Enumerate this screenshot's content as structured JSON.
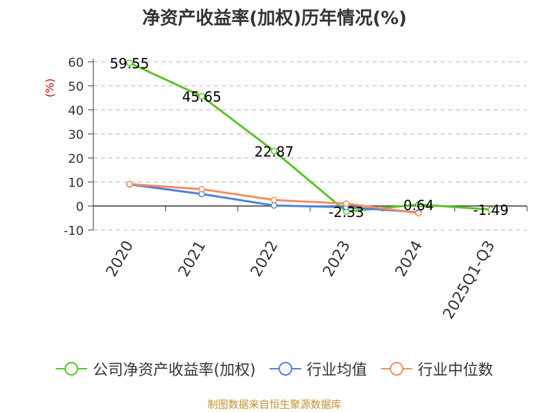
{
  "chart_data": {
    "type": "line",
    "title": "净资产收益率(加权)历年情况(%)",
    "xlabel": "",
    "ylabel": "(%)",
    "categories": [
      "2020",
      "2021",
      "2022",
      "2023",
      "2024",
      "2025Q1-Q3"
    ],
    "ylim": [
      -10,
      60
    ],
    "yticks": [
      -10,
      0,
      10,
      20,
      30,
      40,
      50,
      60
    ],
    "grid": true,
    "legend_position": "bottom",
    "series": [
      {
        "name": "公司净资产收益率(加权)",
        "color": "#5ac322",
        "values": [
          59.55,
          45.65,
          22.87,
          -2.33,
          0.64,
          -1.49
        ],
        "labels": [
          "59.55",
          "45.65",
          "22.87",
          "-2.33",
          "0.64",
          "-1.49"
        ]
      },
      {
        "name": "行业均值",
        "color": "#4e80d9",
        "values": [
          9.0,
          5.0,
          0.2,
          -0.5,
          -2.6,
          null
        ]
      },
      {
        "name": "行业中位数",
        "color": "#f58c5c",
        "values": [
          9.1,
          7.0,
          2.5,
          1.0,
          -3.0,
          null
        ]
      }
    ]
  },
  "source": "制图数据来自恒生聚源数据库"
}
